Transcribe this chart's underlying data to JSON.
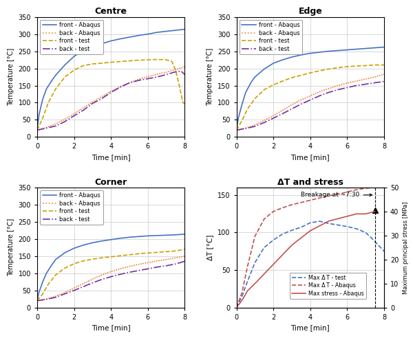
{
  "centre": {
    "title": "Centre",
    "front_abaqus": {
      "x": [
        0,
        0.1,
        0.3,
        0.5,
        0.8,
        1,
        1.5,
        2,
        2.5,
        3,
        3.5,
        4,
        4.5,
        5,
        5.5,
        6,
        6.5,
        7,
        7.5,
        8
      ],
      "y": [
        20,
        65,
        110,
        140,
        165,
        180,
        210,
        235,
        252,
        265,
        272,
        280,
        286,
        291,
        296,
        300,
        305,
        308,
        311,
        314
      ]
    },
    "back_abaqus": {
      "x": [
        0,
        0.5,
        1,
        1.5,
        2,
        2.5,
        3,
        3.5,
        4,
        4.5,
        5,
        5.5,
        6,
        6.5,
        7,
        7.5,
        8
      ],
      "y": [
        20,
        28,
        38,
        52,
        68,
        85,
        102,
        118,
        133,
        147,
        158,
        168,
        176,
        183,
        189,
        196,
        205
      ]
    },
    "front_test": {
      "x": [
        0,
        0.3,
        0.6,
        1,
        1.5,
        2,
        2.5,
        3,
        3.5,
        4,
        4.5,
        5,
        5.5,
        6,
        6.5,
        7,
        7.3,
        7.5,
        7.7,
        7.9,
        8
      ],
      "y": [
        20,
        55,
        100,
        140,
        175,
        195,
        208,
        213,
        215,
        218,
        220,
        222,
        224,
        225,
        226,
        225,
        220,
        195,
        150,
        100,
        97
      ]
    },
    "back_test": {
      "x": [
        0,
        0.5,
        1,
        1.5,
        2,
        2.5,
        3,
        3.5,
        4,
        4.5,
        5,
        5.5,
        6,
        6.5,
        7,
        7.5,
        7.8,
        8
      ],
      "y": [
        20,
        26,
        32,
        45,
        62,
        78,
        98,
        112,
        130,
        145,
        158,
        165,
        170,
        175,
        182,
        190,
        192,
        182
      ]
    }
  },
  "edge": {
    "title": "Edge",
    "front_abaqus": {
      "x": [
        0,
        0.1,
        0.3,
        0.5,
        0.8,
        1,
        1.5,
        2,
        2.5,
        3,
        3.5,
        4,
        4.5,
        5,
        5.5,
        6,
        6.5,
        7,
        7.5,
        8
      ],
      "y": [
        20,
        55,
        95,
        130,
        160,
        175,
        198,
        215,
        225,
        233,
        239,
        244,
        247,
        250,
        252,
        254,
        256,
        258,
        260,
        262
      ]
    },
    "back_abaqus": {
      "x": [
        0,
        0.5,
        1,
        1.5,
        2,
        2.5,
        3,
        3.5,
        4,
        4.5,
        5,
        5.5,
        6,
        6.5,
        7,
        7.5,
        8
      ],
      "y": [
        20,
        26,
        35,
        48,
        62,
        78,
        94,
        108,
        120,
        132,
        141,
        150,
        157,
        163,
        169,
        175,
        183
      ]
    },
    "front_test": {
      "x": [
        0,
        0.3,
        0.6,
        1,
        1.5,
        2,
        2.5,
        3,
        3.5,
        4,
        4.5,
        5,
        5.5,
        6,
        6.5,
        7,
        7.5,
        8
      ],
      "y": [
        20,
        48,
        82,
        112,
        138,
        152,
        163,
        173,
        180,
        187,
        193,
        198,
        202,
        205,
        207,
        208,
        210,
        210
      ]
    },
    "back_test": {
      "x": [
        0,
        0.5,
        1,
        1.5,
        2,
        2.5,
        3,
        3.5,
        4,
        4.5,
        5,
        5.5,
        6,
        6.5,
        7,
        7.5,
        8
      ],
      "y": [
        20,
        25,
        31,
        42,
        55,
        68,
        82,
        96,
        108,
        120,
        130,
        138,
        144,
        150,
        154,
        158,
        162
      ]
    }
  },
  "corner": {
    "title": "Corner",
    "front_abaqus": {
      "x": [
        0,
        0.1,
        0.3,
        0.5,
        0.8,
        1,
        1.5,
        2,
        2.5,
        3,
        3.5,
        4,
        4.5,
        5,
        5.5,
        6,
        6.5,
        7,
        7.5,
        8
      ],
      "y": [
        20,
        45,
        75,
        100,
        125,
        140,
        160,
        173,
        182,
        189,
        194,
        198,
        202,
        205,
        207,
        209,
        210,
        211,
        212,
        214
      ]
    },
    "back_abaqus": {
      "x": [
        0,
        0.5,
        1,
        1.5,
        2,
        2.5,
        3,
        3.5,
        4,
        4.5,
        5,
        5.5,
        6,
        6.5,
        7,
        7.5,
        8
      ],
      "y": [
        20,
        25,
        33,
        44,
        57,
        70,
        83,
        95,
        105,
        113,
        120,
        126,
        131,
        136,
        140,
        145,
        150
      ]
    },
    "front_test": {
      "x": [
        0,
        0.3,
        0.6,
        1,
        1.5,
        2,
        2.5,
        3,
        3.5,
        4,
        4.5,
        5,
        5.5,
        6,
        6.5,
        7,
        7.5,
        8
      ],
      "y": [
        20,
        40,
        68,
        95,
        115,
        128,
        136,
        141,
        145,
        148,
        151,
        154,
        157,
        159,
        161,
        163,
        165,
        170
      ]
    },
    "back_test": {
      "x": [
        0,
        0.5,
        1,
        1.5,
        2,
        2.5,
        3,
        3.5,
        4,
        4.5,
        5,
        5.5,
        6,
        6.5,
        7,
        7.5,
        8
      ],
      "y": [
        20,
        24,
        30,
        40,
        50,
        61,
        72,
        82,
        90,
        97,
        103,
        108,
        113,
        118,
        122,
        127,
        135
      ]
    }
  },
  "stress": {
    "title": "ΔT and stress",
    "breakage_time": 7.5,
    "breakage_label": "Breakage at ~7:30",
    "max_dt_test": {
      "x": [
        0,
        0.3,
        0.6,
        1,
        1.5,
        2,
        2.5,
        3,
        3.5,
        4,
        4.5,
        5,
        5.5,
        6,
        6.5,
        7,
        7.3,
        7.5,
        8
      ],
      "y": [
        0,
        15,
        35,
        60,
        80,
        90,
        98,
        103,
        107,
        113,
        115,
        112,
        110,
        108,
        105,
        100,
        93,
        88,
        75
      ]
    },
    "max_dt_abaqus": {
      "x": [
        0,
        0.3,
        0.6,
        1,
        1.5,
        2,
        2.5,
        3,
        3.5,
        4,
        4.5,
        5,
        5.5,
        6,
        6.5,
        7,
        7.5
      ],
      "y": [
        0,
        20,
        55,
        95,
        118,
        128,
        133,
        137,
        140,
        143,
        146,
        149,
        151,
        154,
        157,
        159,
        160
      ]
    },
    "max_stress": {
      "x": [
        0,
        0.3,
        0.6,
        1,
        1.5,
        2,
        2.5,
        3,
        3.5,
        4,
        4.5,
        5,
        5.5,
        6,
        6.5,
        7,
        7.5
      ],
      "y": [
        0,
        3,
        7,
        10,
        14,
        18,
        22,
        26,
        29,
        32,
        34,
        36,
        37,
        38,
        39,
        39,
        40
      ]
    }
  },
  "colors": {
    "front_abaqus": "#4472C4",
    "back_abaqus": "#ED7D31",
    "front_test": "#C8A000",
    "back_test": "#7030A0"
  },
  "dt_test_color": "#4472C4",
  "dt_abaqus_color": "#C0504D",
  "stress_color": "#C0504D",
  "ylim_temp": [
    0,
    350
  ],
  "xlim": [
    0,
    8
  ],
  "yticks_temp": [
    0,
    50,
    100,
    150,
    200,
    250,
    300,
    350
  ],
  "xticks": [
    0,
    2,
    4,
    6,
    8
  ]
}
